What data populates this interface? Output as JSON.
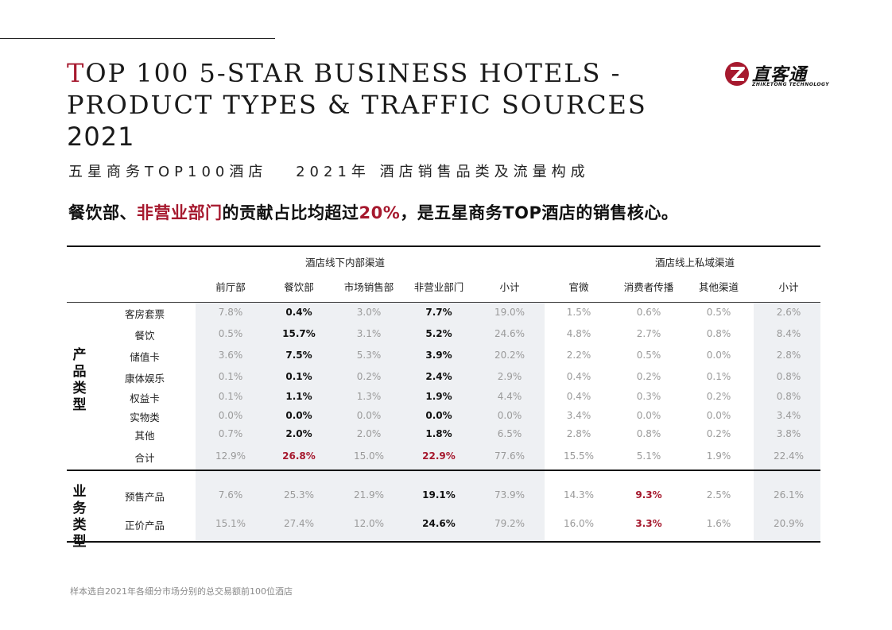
{
  "title": {
    "first_letter": "T",
    "line1_rest": "OP 100 5-STAR BUSINESS HOTELS -",
    "line2": "PRODUCT TYPES & TRAFFIC SOURCES",
    "line3": "2021"
  },
  "subtitle": "五星商务TOP100酒店　 2021年 酒店销售品类及流量构成",
  "headline": {
    "part1": "餐饮部、",
    "red1": "非营业部门",
    "part2": "的贡献占比均超过",
    "red2": "20%",
    "part3": "，是五星商务TOP酒店的销售核心。"
  },
  "logo": {
    "cn": "直客通",
    "en": "ZHIKETONG TECHNOLOGY"
  },
  "colors": {
    "accent": "#a6192e",
    "shade": "#eef0f3"
  },
  "table": {
    "groups": [
      "酒店线下内部渠道",
      "酒店线上私域渠道"
    ],
    "columns": [
      "前厅部",
      "餐饮部",
      "市场销售部",
      "非营业部门",
      "小计",
      "官微",
      "消费者传播",
      "其他渠道",
      "小计"
    ],
    "sections": [
      {
        "label": "产品\n类型",
        "rows": [
          {
            "name": "客房套票",
            "values": [
              "7.8%",
              "0.4%",
              "3.0%",
              "7.7%",
              "19.0%",
              "1.5%",
              "0.6%",
              "0.5%",
              "2.6%"
            ]
          },
          {
            "name": "餐饮",
            "values": [
              "0.5%",
              "15.7%",
              "3.1%",
              "5.2%",
              "24.6%",
              "4.8%",
              "2.7%",
              "0.8%",
              "8.4%"
            ]
          },
          {
            "name": "储值卡",
            "values": [
              "3.6%",
              "7.5%",
              "5.3%",
              "3.9%",
              "20.2%",
              "2.2%",
              "0.5%",
              "0.0%",
              "2.8%"
            ]
          },
          {
            "name": "康体娱乐",
            "values": [
              "0.1%",
              "0.1%",
              "0.2%",
              "2.4%",
              "2.9%",
              "0.4%",
              "0.2%",
              "0.1%",
              "0.8%"
            ]
          },
          {
            "name": "权益卡",
            "values": [
              "0.1%",
              "1.1%",
              "1.3%",
              "1.9%",
              "4.4%",
              "0.4%",
              "0.3%",
              "0.2%",
              "0.8%"
            ]
          },
          {
            "name": "实物类",
            "values": [
              "0.0%",
              "0.0%",
              "0.0%",
              "0.0%",
              "0.0%",
              "3.4%",
              "0.0%",
              "0.0%",
              "3.4%"
            ]
          },
          {
            "name": "其他",
            "values": [
              "0.7%",
              "2.0%",
              "2.0%",
              "1.8%",
              "6.5%",
              "2.8%",
              "0.8%",
              "0.2%",
              "3.8%"
            ]
          },
          {
            "name": "合计",
            "values": [
              "12.9%",
              "26.8%",
              "15.0%",
              "22.9%",
              "77.6%",
              "15.5%",
              "5.1%",
              "1.9%",
              "22.4%"
            ]
          }
        ]
      },
      {
        "label": "业务\n类型",
        "rows": [
          {
            "name": "预售产品",
            "values": [
              "7.6%",
              "25.3%",
              "21.9%",
              "19.1%",
              "73.9%",
              "14.3%",
              "9.3%",
              "2.5%",
              "26.1%"
            ]
          },
          {
            "name": "正价产品",
            "values": [
              "15.1%",
              "27.4%",
              "12.0%",
              "24.6%",
              "79.2%",
              "16.0%",
              "3.3%",
              "1.6%",
              "20.9%"
            ]
          }
        ]
      }
    ]
  },
  "footnote": "样本选自2021年各细分市场分别的总交易额前100位酒店"
}
